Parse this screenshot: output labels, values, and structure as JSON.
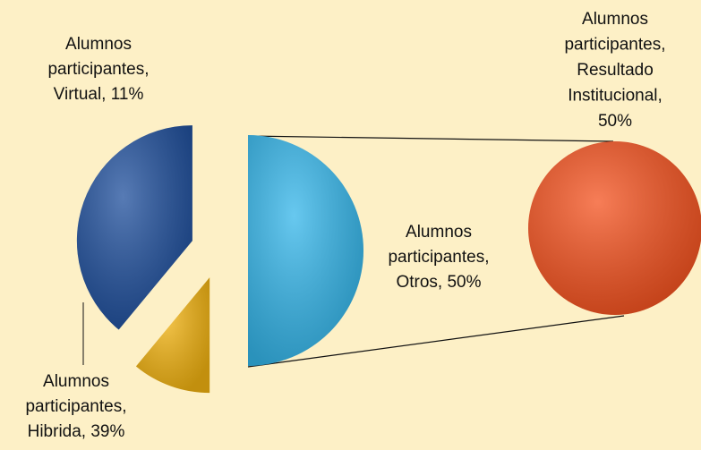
{
  "chart_data": {
    "type": "pie-of-pie",
    "values": [
      11,
      39,
      50
    ],
    "labels": [
      [
        "Alumnos",
        "participantes,",
        "Virtual, 11%"
      ],
      [
        "Alumnos",
        "participantes,",
        "Hibrida, 39%"
      ],
      [
        "Alumnos",
        "participantes,",
        "Otros, 50%"
      ]
    ],
    "colors": [
      "#f2b311",
      "#1f4f9c",
      "#35b6ea"
    ],
    "secondary": {
      "values": [
        50
      ],
      "labels": [
        [
          "Alumnos",
          "participantes,",
          "Resultado",
          "Institucional,",
          "50%"
        ]
      ],
      "colors": [
        "#f4521f"
      ]
    }
  }
}
